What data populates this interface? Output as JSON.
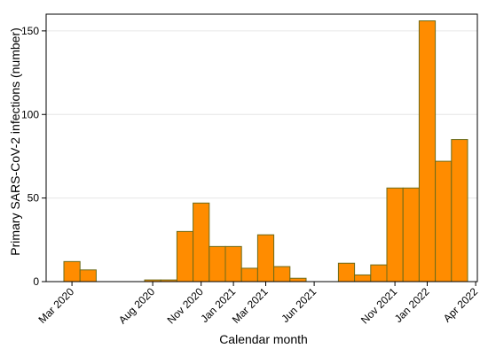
{
  "chart_data": {
    "type": "bar",
    "xlabel": "Calendar month",
    "ylabel": "Primary SARS-CoV-2 infections (number)",
    "ylim": [
      0,
      160
    ],
    "yticks": [
      0,
      50,
      100,
      150
    ],
    "ytick_labels": [
      "0",
      "50",
      "100",
      "150"
    ],
    "x_start": "2020-03",
    "x_end": "2022-04",
    "x_tick_labels": [
      "Mar 2020",
      "Aug 2020",
      "Nov 2020",
      "Jan 2021",
      "Mar 2021",
      "Jun 2021",
      "Nov 2021",
      "Jan 2022",
      "Apr 2022"
    ],
    "grid": true,
    "bar_color": "#ff8c00",
    "bar_edge_color": "#6b6b1a",
    "categories": [
      "2020-03",
      "2020-04",
      "2020-05",
      "2020-06",
      "2020-07",
      "2020-08",
      "2020-09",
      "2020-10",
      "2020-11",
      "2020-12",
      "2021-01",
      "2021-02",
      "2021-03",
      "2021-04",
      "2021-05",
      "2021-06",
      "2021-07",
      "2021-08",
      "2021-09",
      "2021-10",
      "2021-11",
      "2021-12",
      "2022-01",
      "2022-02",
      "2022-03",
      "2022-04"
    ],
    "values": [
      12,
      7,
      0,
      0,
      0,
      1,
      1,
      30,
      47,
      21,
      21,
      8,
      28,
      9,
      2,
      0,
      0,
      11,
      4,
      10,
      56,
      56,
      156,
      72,
      85,
      0
    ]
  }
}
